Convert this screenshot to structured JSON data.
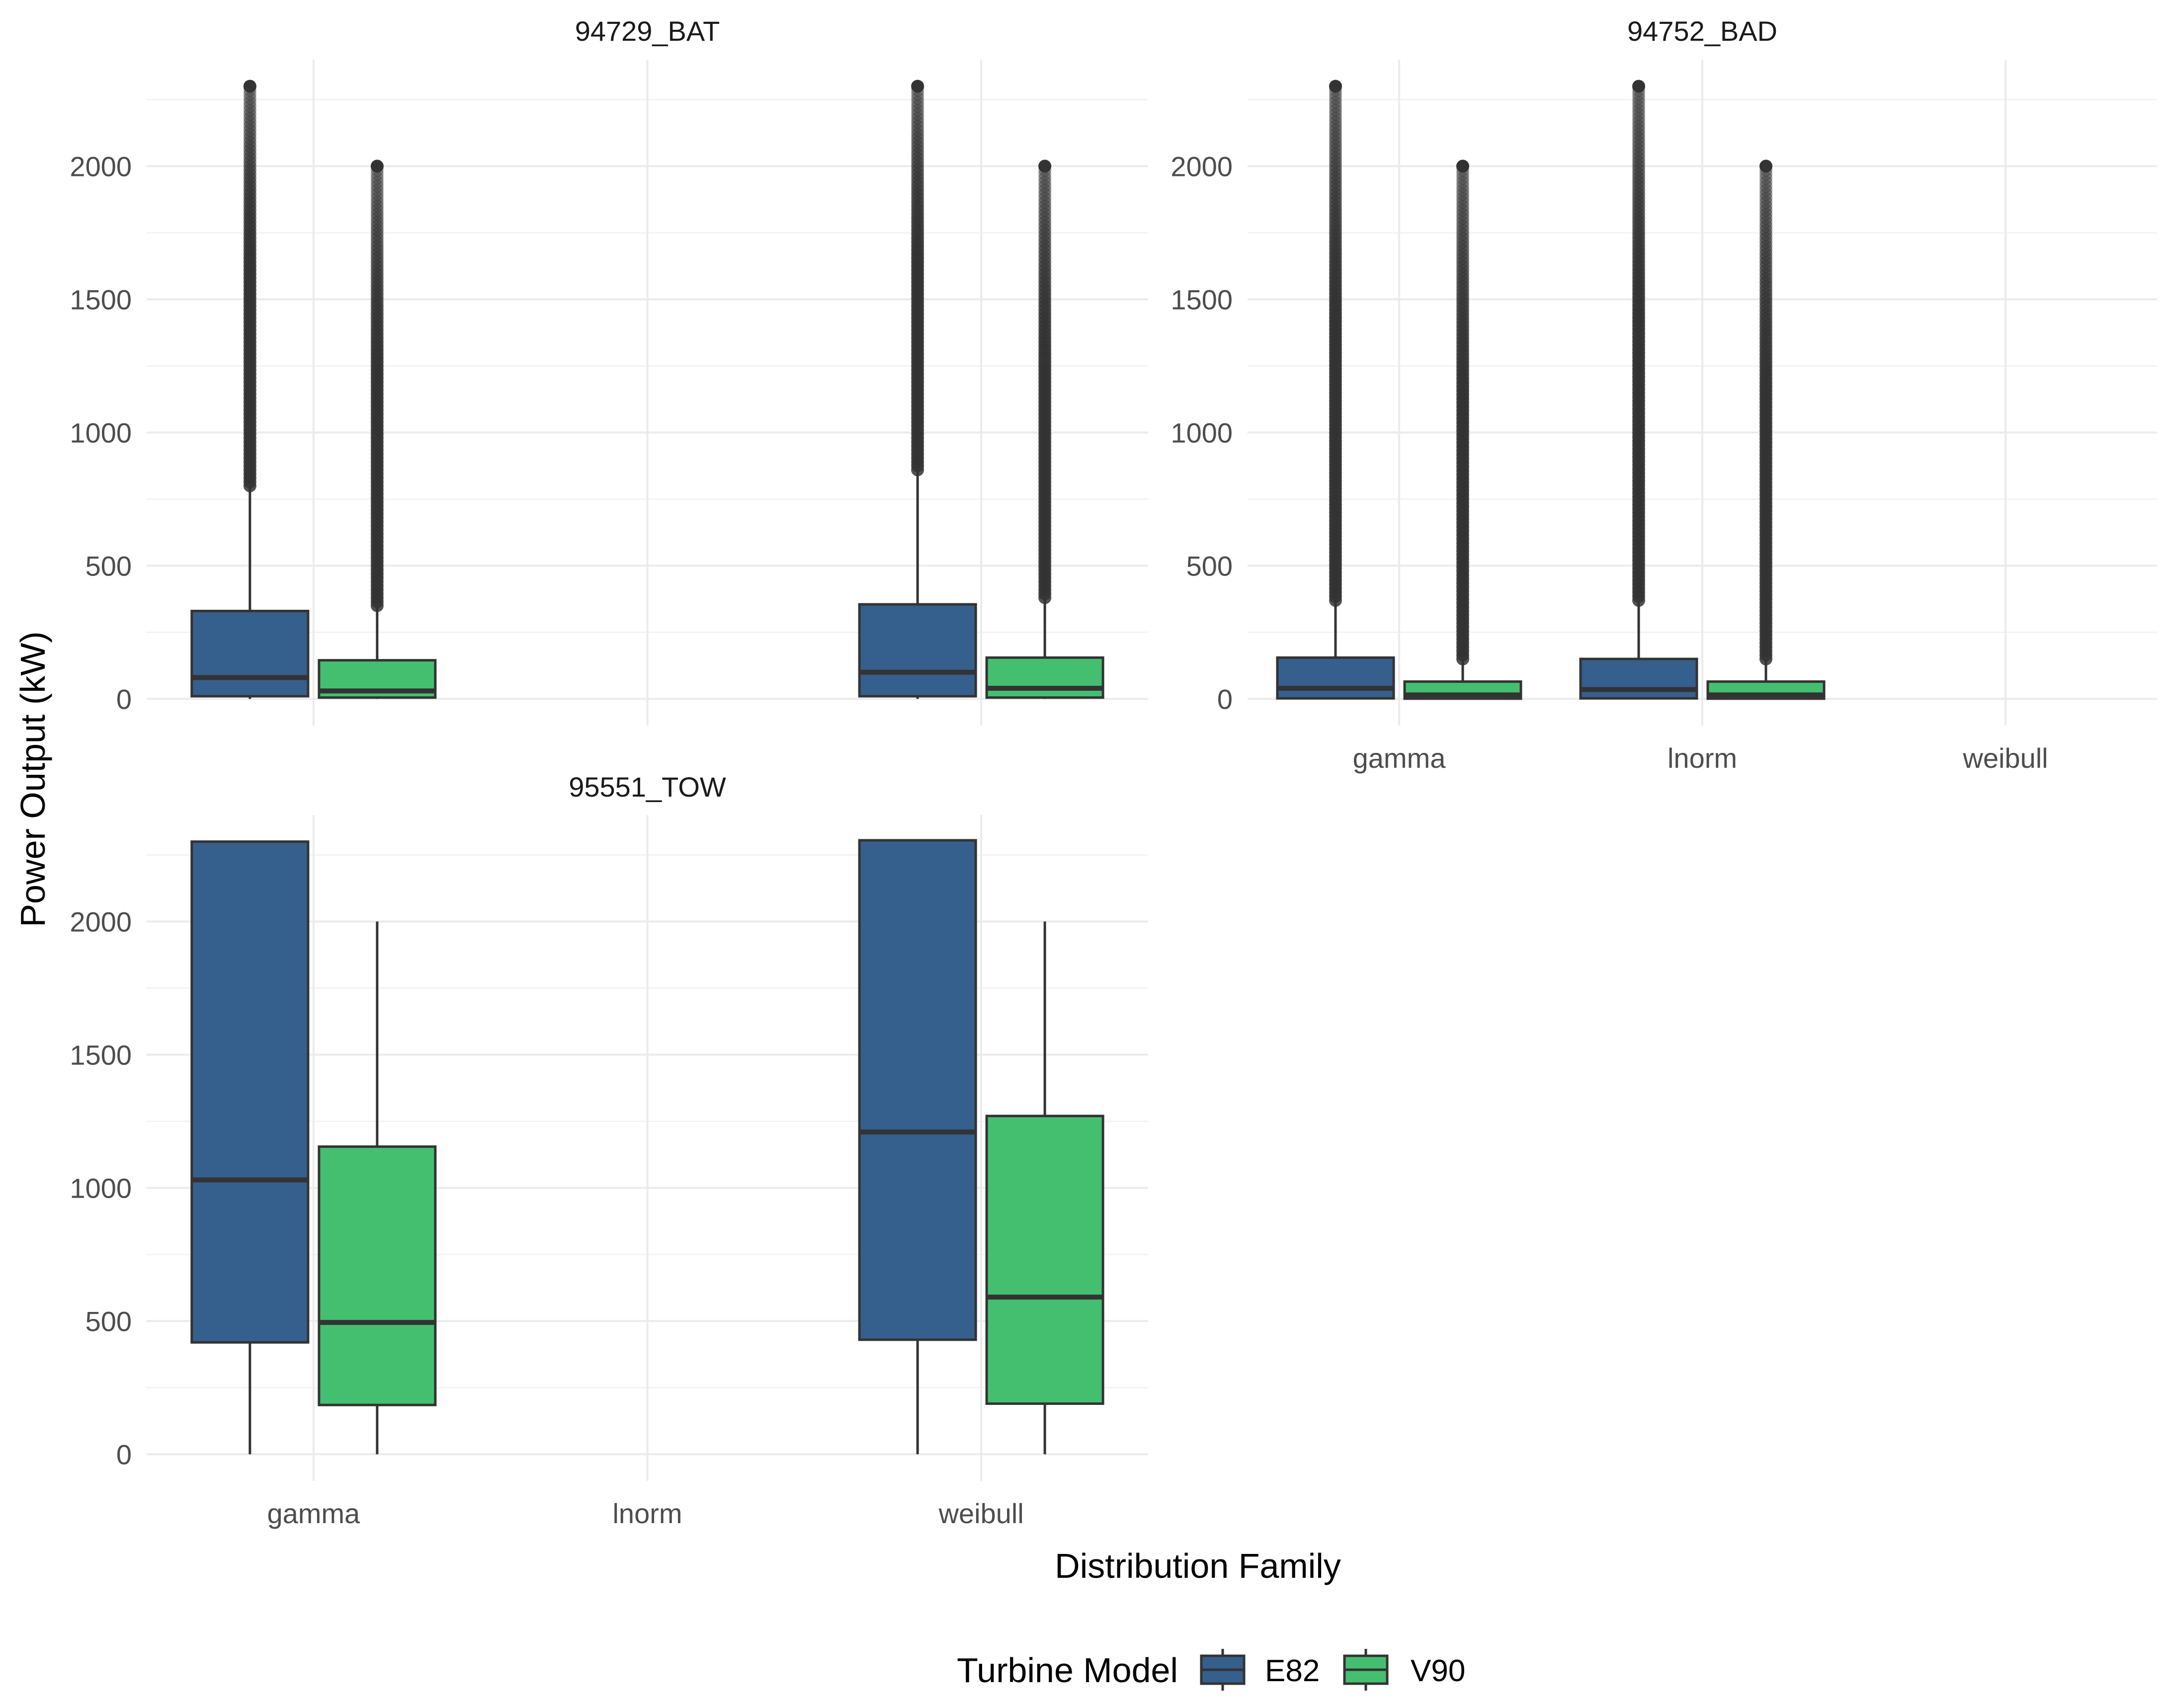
{
  "colors": {
    "E82": "#355F8D",
    "V90": "#44BF70",
    "outline": "#333333",
    "grid_major": "#EBEBEB",
    "grid_minor": "#F3F3F3",
    "outlier": "#333333"
  },
  "chart_data": {
    "type": "boxplot",
    "facets": [
      "94729_BAT",
      "94752_BAD",
      "95551_TOW"
    ],
    "xlabel": "Distribution Family",
    "ylabel": "Power Output (kW)",
    "categories": [
      "gamma",
      "lnorm",
      "weibull"
    ],
    "ylim": [
      -100,
      2400
    ],
    "yticks": [
      0,
      500,
      1000,
      1500,
      2000
    ],
    "grid": true,
    "legend": {
      "title": "Turbine Model",
      "position": "bottom",
      "entries": [
        "E82",
        "V90"
      ]
    },
    "panels": [
      {
        "facet": "94729_BAT",
        "boxes": [
          {
            "category": "gamma",
            "series": "E82",
            "min": 0,
            "q1": 10,
            "median": 80,
            "q3": 330,
            "whisker_high": 800,
            "outliers_range": [
              800,
              2300
            ]
          },
          {
            "category": "gamma",
            "series": "V90",
            "min": 0,
            "q1": 5,
            "median": 30,
            "q3": 145,
            "whisker_high": 350,
            "outliers_range": [
              350,
              2000
            ]
          },
          {
            "category": "weibull",
            "series": "E82",
            "min": 0,
            "q1": 10,
            "median": 100,
            "q3": 355,
            "whisker_high": 860,
            "outliers_range": [
              860,
              2300
            ]
          },
          {
            "category": "weibull",
            "series": "V90",
            "min": 0,
            "q1": 5,
            "median": 40,
            "q3": 155,
            "whisker_high": 380,
            "outliers_range": [
              380,
              2000
            ]
          }
        ]
      },
      {
        "facet": "94752_BAD",
        "boxes": [
          {
            "category": "gamma",
            "series": "E82",
            "min": 0,
            "q1": 2,
            "median": 40,
            "q3": 155,
            "whisker_high": 370,
            "outliers_range": [
              370,
              2300
            ]
          },
          {
            "category": "gamma",
            "series": "V90",
            "min": 0,
            "q1": 1,
            "median": 15,
            "q3": 65,
            "whisker_high": 150,
            "outliers_range": [
              150,
              2000
            ]
          },
          {
            "category": "lnorm",
            "series": "E82",
            "min": 0,
            "q1": 2,
            "median": 35,
            "q3": 150,
            "whisker_high": 370,
            "outliers_range": [
              370,
              2300
            ]
          },
          {
            "category": "lnorm",
            "series": "V90",
            "min": 0,
            "q1": 1,
            "median": 15,
            "q3": 65,
            "whisker_high": 150,
            "outliers_range": [
              150,
              2000
            ]
          }
        ]
      },
      {
        "facet": "95551_TOW",
        "boxes": [
          {
            "category": "gamma",
            "series": "E82",
            "min": 0,
            "q1": 420,
            "median": 1030,
            "q3": 2300,
            "whisker_high": 2300
          },
          {
            "category": "gamma",
            "series": "V90",
            "min": 0,
            "q1": 185,
            "median": 495,
            "q3": 1155,
            "whisker_high": 2000
          },
          {
            "category": "weibull",
            "series": "E82",
            "min": 0,
            "q1": 430,
            "median": 1210,
            "q3": 2305,
            "whisker_high": 2305
          },
          {
            "category": "weibull",
            "series": "V90",
            "min": 0,
            "q1": 190,
            "median": 590,
            "q3": 1270,
            "whisker_high": 2000
          }
        ]
      }
    ]
  }
}
